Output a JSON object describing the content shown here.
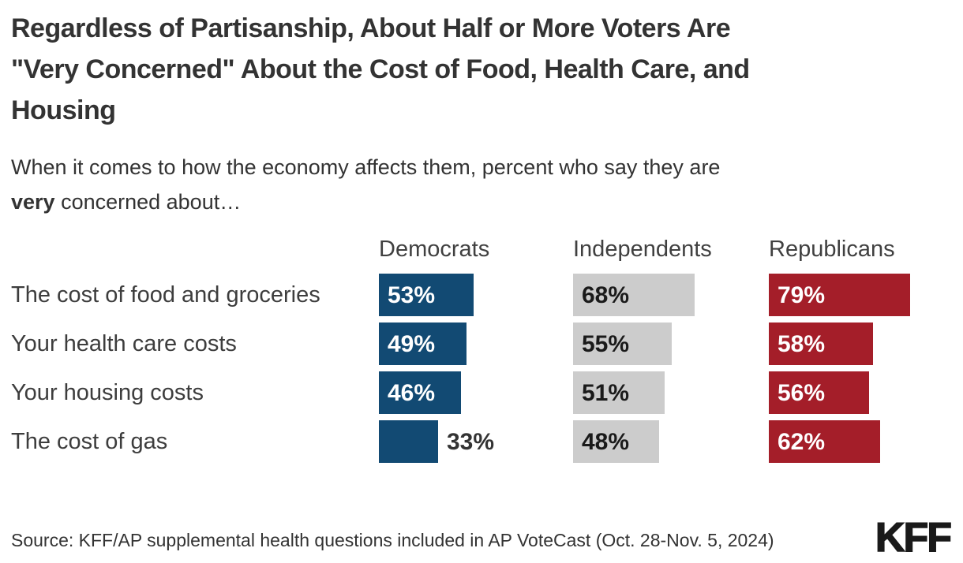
{
  "header": {
    "title_lines": [
      "Regardless of Partisanship, About Half or More Voters Are",
      "\"Very Concerned\" About the Cost of Food, Health Care, and",
      "Housing"
    ],
    "subtitle_line1": "When it comes to how the economy affects them, percent who say they are",
    "subtitle_line2_bold": "very",
    "subtitle_line2_rest": " concerned about…"
  },
  "chart_data": {
    "type": "bar",
    "orientation": "horizontal",
    "title": "Regardless of Partisanship, About Half or More Voters Are \"Very Concerned\" About the Cost of Food, Health Care, and Housing",
    "subtitle": "When it comes to how the economy affects them, percent who say they are very concerned about…",
    "categories": [
      "The cost of food and groceries",
      "Your health care costs",
      "Your housing costs",
      "The cost of gas"
    ],
    "series": [
      {
        "name": "Democrats",
        "color": "#124A73",
        "label_color": "#ffffff",
        "values": [
          53,
          49,
          46,
          33
        ]
      },
      {
        "name": "Independents",
        "color": "#CCCCCC",
        "label_color": "#1a1a1a",
        "values": [
          68,
          55,
          51,
          48
        ]
      },
      {
        "name": "Republicans",
        "color": "#A41E29",
        "label_color": "#ffffff",
        "values": [
          79,
          58,
          56,
          62
        ]
      }
    ],
    "value_format": "percent",
    "xlim": [
      0,
      100
    ],
    "grid": false,
    "legend_position": "column-headers-above-bars"
  },
  "footer": {
    "source": "Source: KFF/AP supplemental health questions included in AP VoteCast (Oct. 28-Nov. 5, 2024)",
    "logo": "KFF"
  },
  "colors": {
    "democrat_blue": "#124A73",
    "independent_gray": "#CCCCCC",
    "republican_red": "#A41E29",
    "text_dark": "#333333",
    "background": "#FFFFFF"
  }
}
